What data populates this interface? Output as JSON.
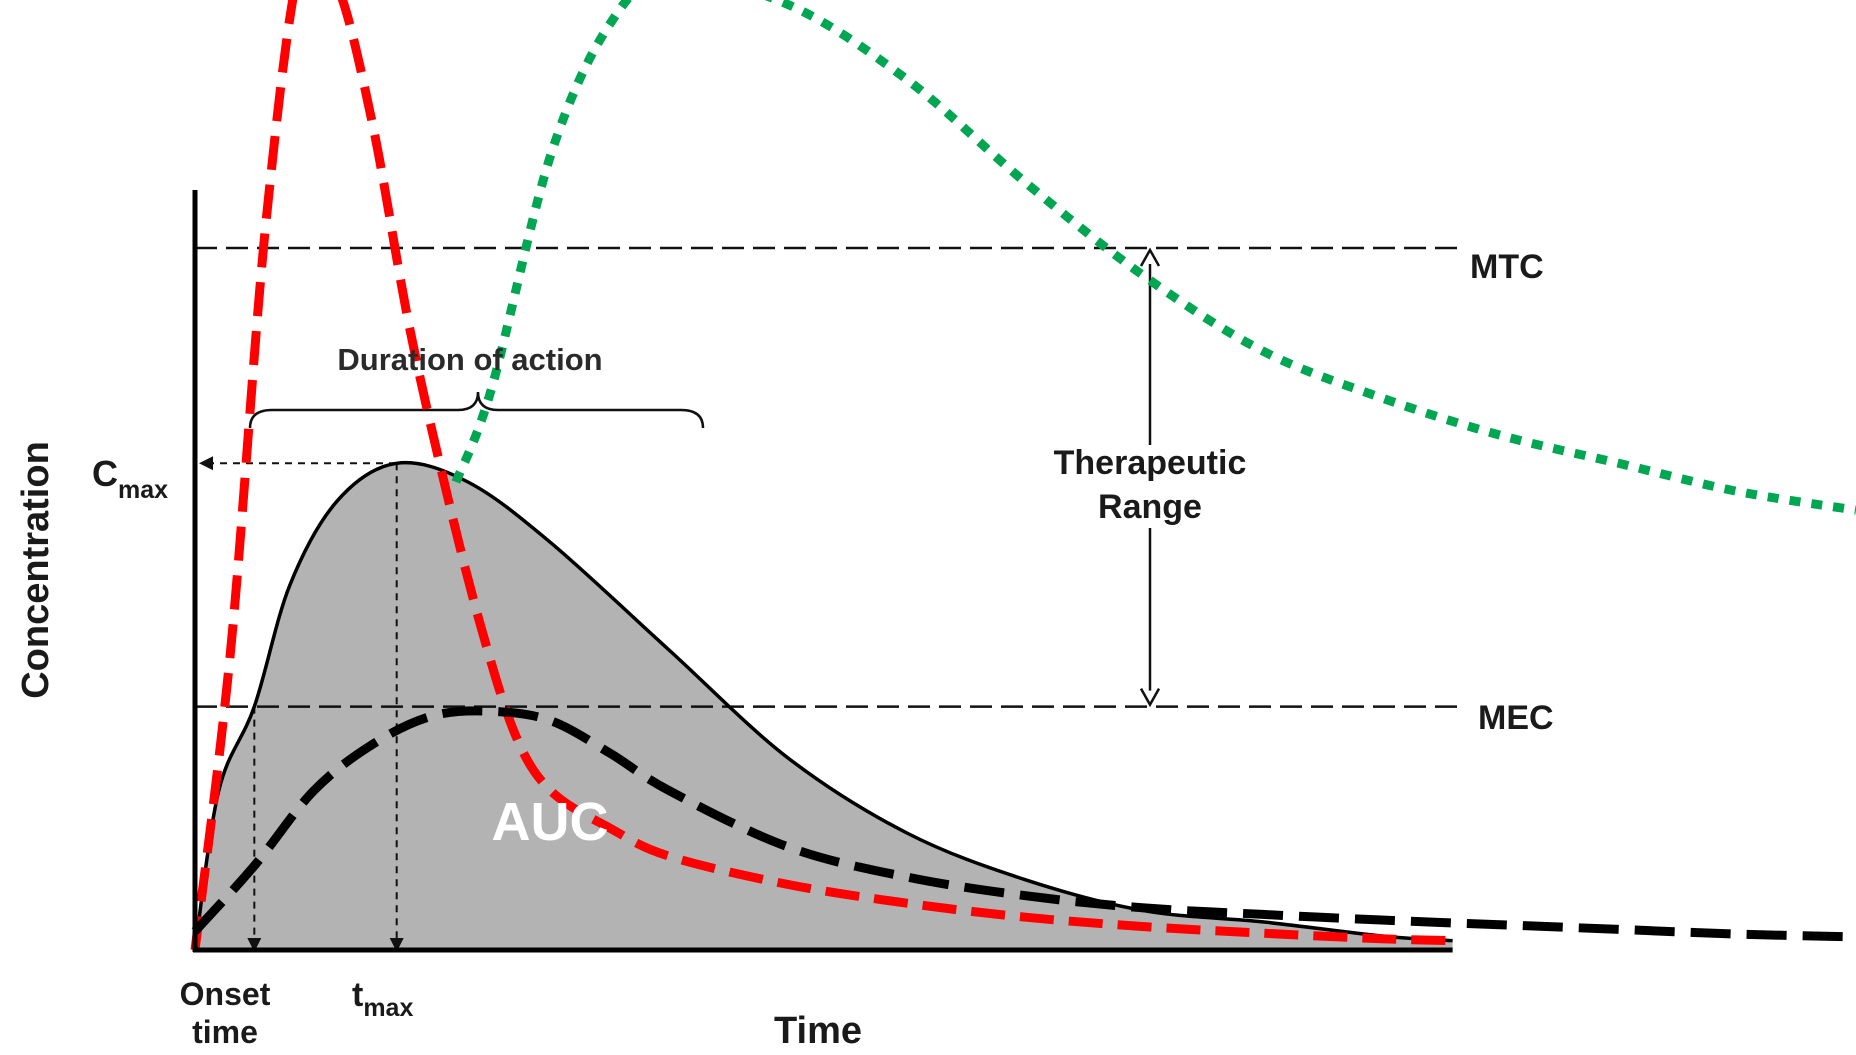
{
  "chart_data": {
    "type": "line",
    "title": "",
    "xlabel": "Time",
    "ylabel": "Concentration",
    "xlim": [
      0,
      14
    ],
    "ylim": [
      0,
      10
    ],
    "grid": false,
    "legend": "none",
    "reference_lines": [
      {
        "name": "MTC",
        "y": 7.5
      },
      {
        "name": "MEC",
        "y": 2.6
      }
    ],
    "annotations": {
      "cmax_main": "C",
      "cmax_sub": "max",
      "tmax_main": "t",
      "tmax_sub": "max",
      "onset_line1": "Onset",
      "onset_line2": "time",
      "duration": "Duration of action",
      "therapeutic_line1": "Therapeutic",
      "therapeutic_line2": "Range",
      "auc": "AUC"
    },
    "key_points": {
      "cmax": 5.2,
      "tmax": 1.7,
      "onset_time": 0.5
    },
    "series": [
      {
        "style": "solid-black-filled-gray",
        "color": "#000000",
        "fill": "#b3b3b3",
        "x": [
          0,
          0.2,
          0.5,
          0.8,
          1.2,
          1.7,
          2.3,
          3,
          4,
          5,
          6,
          7,
          8,
          9,
          10,
          10.6
        ],
        "y": [
          0,
          1.7,
          2.6,
          3.9,
          4.8,
          5.2,
          5.0,
          4.35,
          3.2,
          2.05,
          1.25,
          0.75,
          0.42,
          0.3,
          0.15,
          0.1
        ]
      },
      {
        "style": "dashed-red",
        "color": "#ff0000",
        "x": [
          0,
          0.3,
          0.6,
          0.9,
          1.2,
          1.5,
          1.8,
          2.1,
          2.4,
          2.7,
          3.0,
          3.5,
          4.0,
          5.0,
          6.0,
          7.0,
          8.0,
          9.0,
          10.0,
          10.6
        ],
        "y": [
          0,
          3.2,
          7.8,
          10.6,
          10.3,
          8.8,
          6.7,
          5.0,
          3.5,
          2.3,
          1.7,
          1.3,
          1.0,
          0.7,
          0.5,
          0.35,
          0.25,
          0.18,
          0.12,
          0.1
        ]
      },
      {
        "style": "dotted-green",
        "color": "#00a651",
        "x": [
          2.2,
          2.5,
          3.0,
          3.5,
          4.0,
          5.0,
          6.0,
          7.0,
          8.0,
          9.0,
          10.0,
          11.0,
          12.0,
          13.0,
          14.0
        ],
        "y": [
          5.0,
          6.0,
          8.5,
          9.9,
          10.4,
          10.1,
          9.3,
          8.2,
          7.2,
          6.4,
          5.9,
          5.5,
          5.2,
          4.9,
          4.7
        ]
      },
      {
        "style": "dashed-black",
        "color": "#000000",
        "x": [
          0,
          0.5,
          1.0,
          1.5,
          2.0,
          2.5,
          3.0,
          3.5,
          4.0,
          5.0,
          6.0,
          7.0,
          8.0,
          9.0,
          10.0,
          11.0,
          12.0,
          13.0,
          14.0
        ],
        "y": [
          0.2,
          0.9,
          1.7,
          2.2,
          2.5,
          2.55,
          2.45,
          2.1,
          1.7,
          1.1,
          0.78,
          0.58,
          0.45,
          0.38,
          0.32,
          0.27,
          0.22,
          0.17,
          0.14
        ]
      }
    ]
  }
}
